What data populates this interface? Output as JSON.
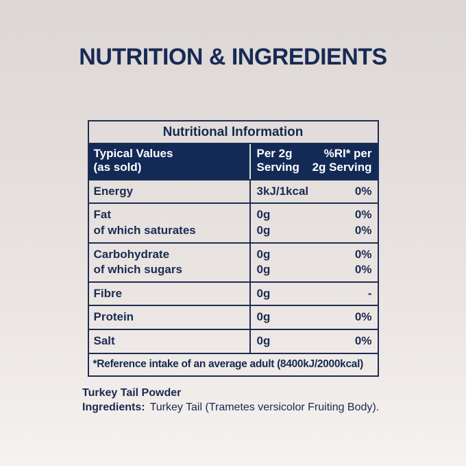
{
  "section": {
    "title": "NUTRITION & INGREDIENTS"
  },
  "colors": {
    "navy_fill": "#132a56",
    "navy_border": "#1e2c52",
    "text_navy": "#1b2b52",
    "header_text": "#ffffff",
    "header_divider_light": "#e6e2df",
    "background_top": "#ddd8d5",
    "background_bottom": "#f6f2f0"
  },
  "table": {
    "title": "Nutritional Information",
    "header": {
      "column1": [
        "Typical Values",
        "(as sold)"
      ],
      "column2": [
        "Per 2g",
        "Serving"
      ],
      "column3": [
        "%RI* per",
        "2g Serving"
      ]
    },
    "rows": [
      {
        "label": "Energy",
        "value": "3kJ/1kcal",
        "ri": "0%"
      },
      {
        "label": "Fat",
        "label2": "of which saturates",
        "value": "0g",
        "value2": "0g",
        "ri": "0%",
        "ri2": "0%"
      },
      {
        "label": "Carbohydrate",
        "label2": "of which sugars",
        "value": "0g",
        "value2": "0g",
        "ri": "0%",
        "ri2": "0%"
      },
      {
        "label": "Fibre",
        "value": "0g",
        "ri": "-"
      },
      {
        "label": "Protein",
        "value": "0g",
        "ri": "0%"
      },
      {
        "label": "Salt",
        "value": "0g",
        "ri": "0%"
      }
    ],
    "footnote": "*Reference intake of an average adult (8400kJ/2000kcal)"
  },
  "ingredients": {
    "product": "Turkey Tail Powder",
    "label": "Ingredients:",
    "text": "Turkey Tail (Trametes versicolor Fruiting Body)."
  }
}
